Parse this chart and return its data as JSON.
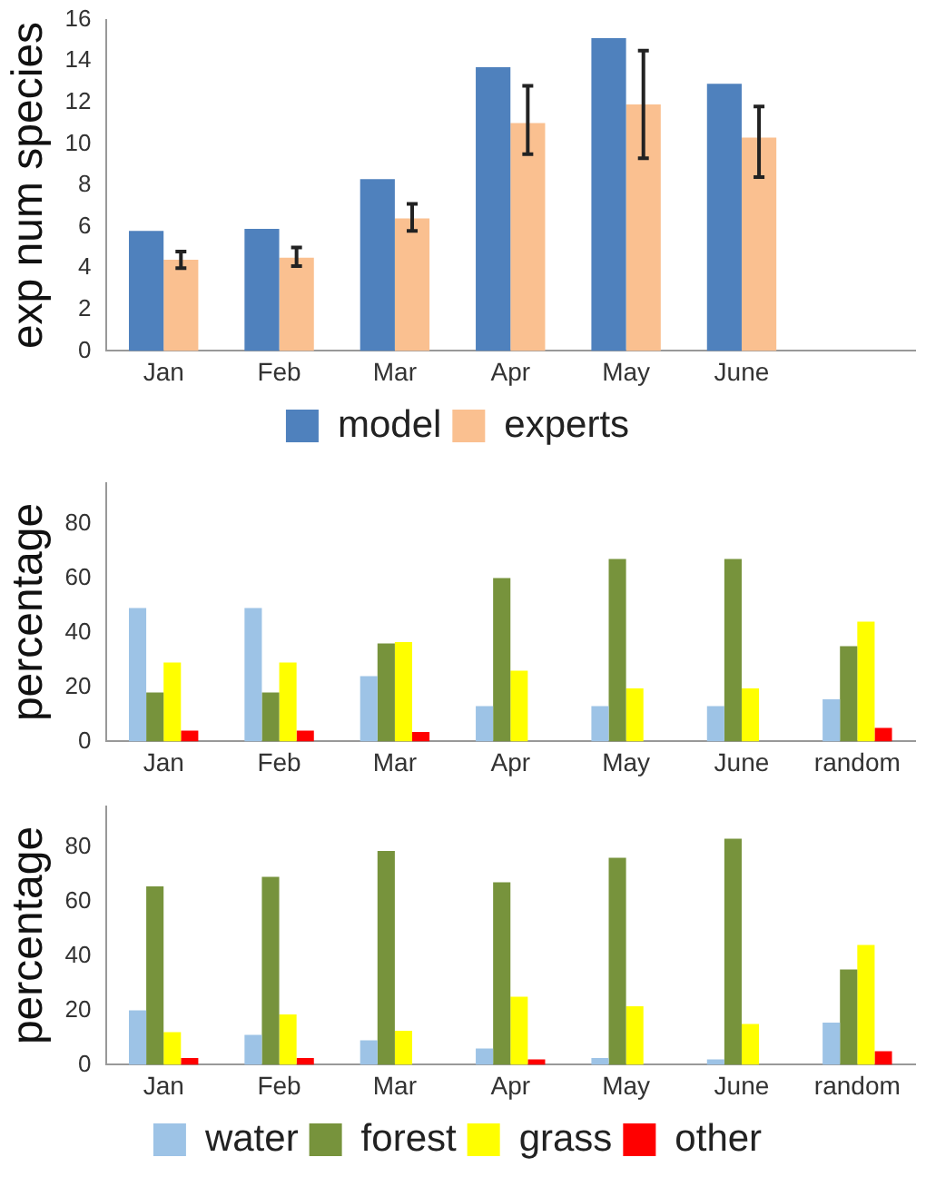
{
  "chart_data": [
    {
      "type": "bar",
      "ylabel": "exp num species",
      "categories": [
        "Jan",
        "Feb",
        "Mar",
        "Apr",
        "May",
        "June",
        null
      ],
      "ylim": [
        0,
        16
      ],
      "yticks": [
        0,
        2,
        4,
        6,
        8,
        10,
        12,
        14,
        16
      ],
      "grid": false,
      "legend": "bottom",
      "series": [
        {
          "name": "model",
          "color": "#4f81bd",
          "values": [
            5.8,
            5.9,
            8.3,
            13.7,
            15.1,
            12.9,
            null
          ]
        },
        {
          "name": "experts",
          "color": "#fac090",
          "values": [
            4.4,
            4.5,
            6.4,
            11.0,
            11.9,
            10.3,
            null
          ],
          "errors": [
            [
              4.0,
              4.8
            ],
            [
              4.1,
              5.0
            ],
            [
              5.8,
              7.1
            ],
            [
              9.5,
              12.8
            ],
            [
              9.3,
              14.5
            ],
            [
              8.4,
              11.8
            ],
            null
          ]
        }
      ]
    },
    {
      "type": "bar",
      "ylabel": "percentage",
      "categories": [
        "Jan",
        "Feb",
        "Mar",
        "Apr",
        "May",
        "June",
        "random"
      ],
      "ylim": [
        0,
        95
      ],
      "yticks": [
        0,
        20,
        40,
        60,
        80
      ],
      "grid": false,
      "series": [
        {
          "color": "#9dc3e6",
          "values": [
            49,
            49,
            24,
            13,
            13,
            13,
            15.5
          ]
        },
        {
          "color": "#77933c",
          "values": [
            18,
            18,
            36,
            60,
            67,
            67,
            35
          ]
        },
        {
          "color": "#ffff00",
          "values": [
            29,
            29,
            36.5,
            26,
            19.5,
            19.5,
            44
          ]
        },
        {
          "color": "#ff0000",
          "values": [
            4,
            4,
            3.5,
            null,
            null,
            null,
            5
          ]
        }
      ]
    },
    {
      "type": "bar",
      "ylabel": "percentage",
      "categories": [
        "Jan",
        "Feb",
        "Mar",
        "Apr",
        "May",
        "June",
        "random"
      ],
      "ylim": [
        0,
        95
      ],
      "yticks": [
        0,
        20,
        40,
        60,
        80
      ],
      "grid": false,
      "legend": "bottom",
      "series": [
        {
          "name": "water",
          "color": "#9dc3e6",
          "values": [
            20,
            11,
            9,
            6,
            2.5,
            2,
            15.5
          ]
        },
        {
          "name": "forest",
          "color": "#77933c",
          "values": [
            65.5,
            69,
            78.5,
            67,
            76,
            83,
            35
          ]
        },
        {
          "name": "grass",
          "color": "#ffff00",
          "values": [
            12,
            18.5,
            12.5,
            25,
            21.5,
            15,
            44
          ]
        },
        {
          "name": "other",
          "color": "#ff0000",
          "values": [
            2.5,
            2.5,
            null,
            2,
            null,
            null,
            5
          ]
        }
      ]
    }
  ]
}
